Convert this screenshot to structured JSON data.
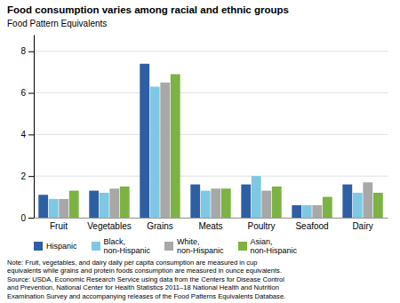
{
  "chart_data": {
    "type": "bar",
    "title": "Food consumption varies among racial and ethnic groups",
    "ylabel": "Food Pattern Equivalents",
    "categories": [
      "Fruit",
      "Vegetables",
      "Grains",
      "Meats",
      "Poultry",
      "Seafood",
      "Dairy"
    ],
    "series": [
      {
        "name": "Hispanic",
        "color": "#2E5FA3",
        "values": [
          1.1,
          1.3,
          7.4,
          1.6,
          1.6,
          0.6,
          1.6
        ]
      },
      {
        "name": "Black,\nnon-Hispanic",
        "color": "#7EC8E3",
        "values": [
          0.9,
          1.2,
          6.3,
          1.3,
          2.0,
          0.6,
          1.2
        ]
      },
      {
        "name": "White,\nnon-Hispanic",
        "color": "#A8A8A8",
        "values": [
          0.9,
          1.4,
          6.5,
          1.4,
          1.3,
          0.6,
          1.7
        ]
      },
      {
        "name": "Asian,\nnon-Hispanic",
        "color": "#7CB342",
        "values": [
          1.3,
          1.5,
          6.9,
          1.4,
          1.5,
          1.0,
          1.2
        ]
      }
    ],
    "ylim": [
      0,
      8.8
    ],
    "yticks": [
      0,
      2,
      4,
      6,
      8
    ],
    "grid": true,
    "annotations": [
      "Note: Fruit, vegetables, and dairy daily per capita consumption are measured in cup",
      "equivalents while grains and protein foods consumption are measured in ounce equivalents.",
      "Source: USDA, Economic Research Service using data from the Centers for Disease Control",
      "and Prevention, National Center for Health Statistics 2011–18 National Health and Nutrition",
      "Examination Survey and accompanying releases of the Food Patterns Equivalents Database."
    ]
  }
}
